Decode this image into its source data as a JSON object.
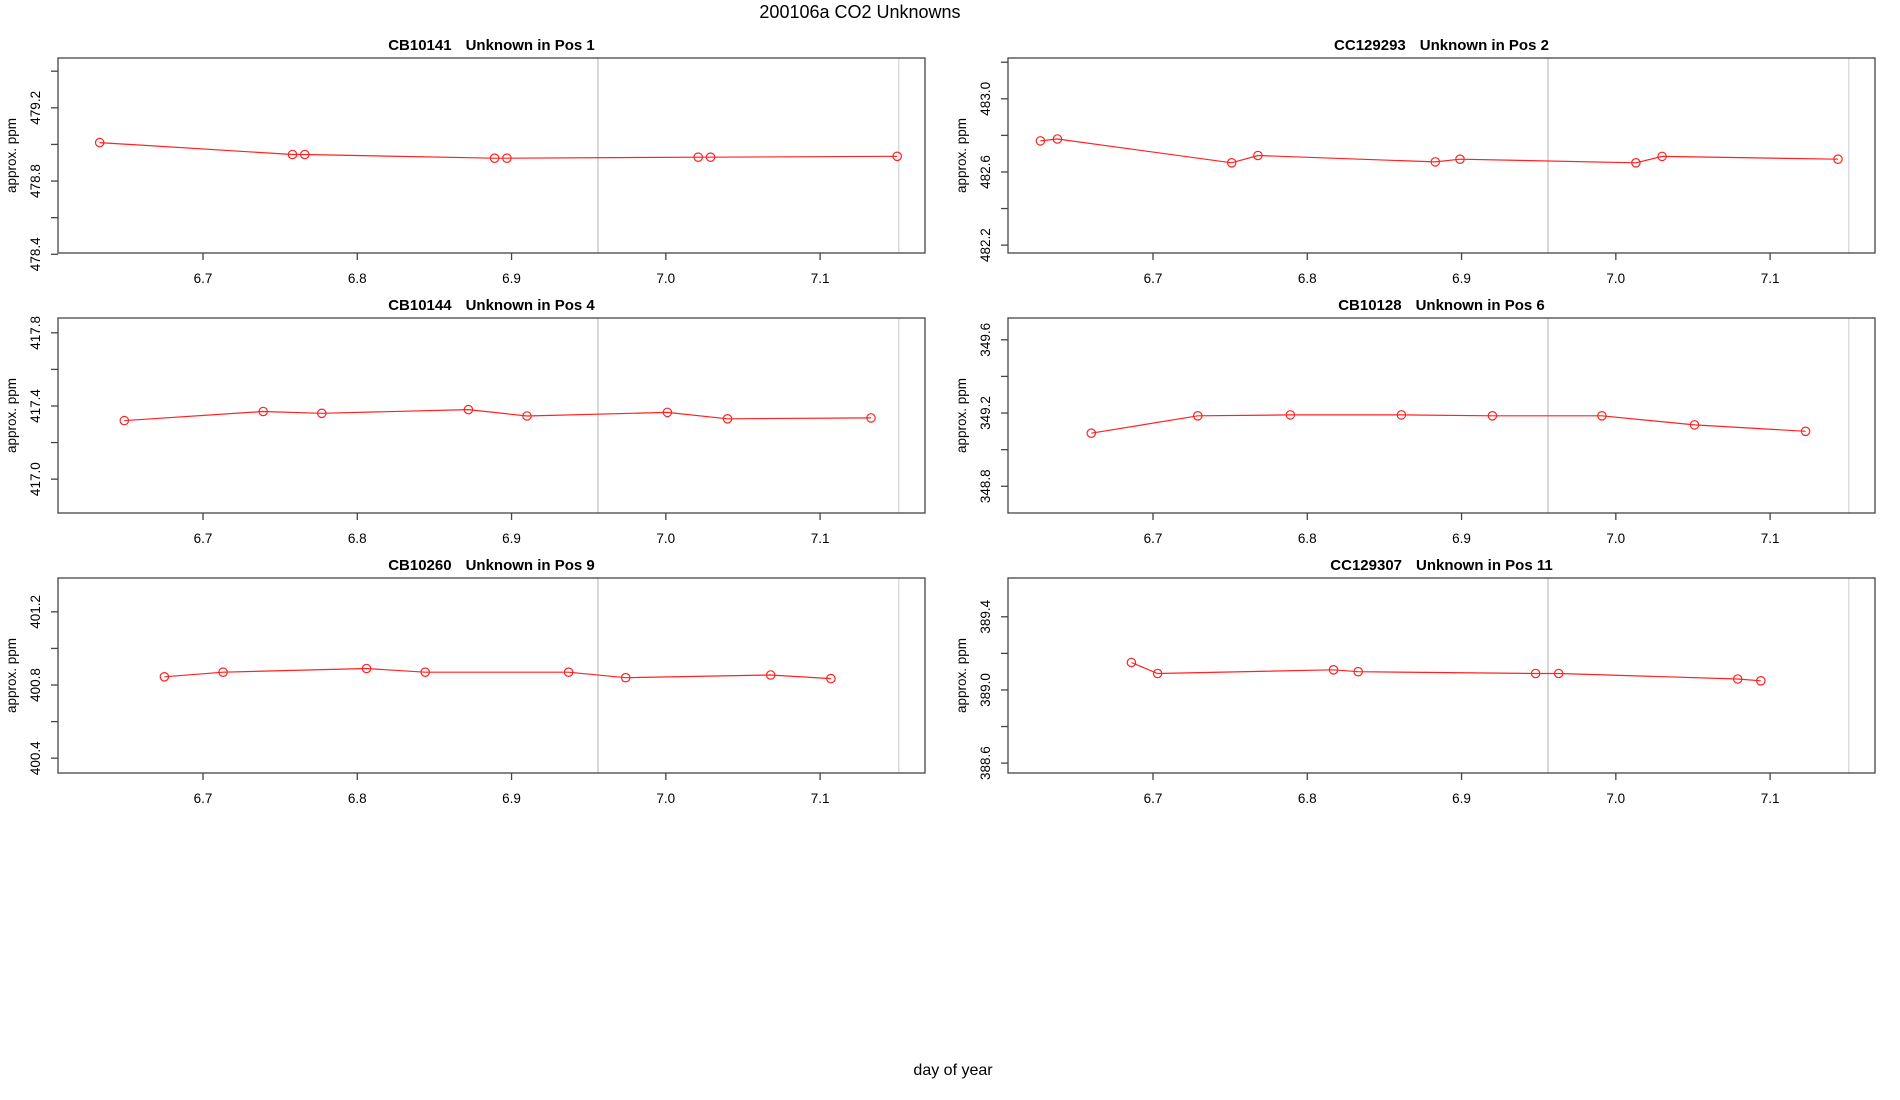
{
  "page_title": "200106a  CO2 Unknowns",
  "xlabel": "day of year",
  "colors": {
    "series": "#ff2222",
    "vline_mid": "#c7c7c7",
    "vline_right": "#d9d9d9",
    "box": "#454545",
    "text": "#000000"
  },
  "chart_data": [
    {
      "type": "line",
      "id": "CB10141",
      "pos": "Unknown in Pos 1",
      "title": "CB10141   Unknown in Pos 1",
      "ylabel": "approx. ppm",
      "x": [
        6.633,
        6.758,
        6.766,
        6.889,
        6.897,
        7.021,
        7.029,
        7.15
      ],
      "y": [
        479.01,
        478.945,
        478.945,
        478.925,
        478.925,
        478.93,
        478.93,
        478.935
      ],
      "xlim": [
        6.606,
        7.168
      ],
      "ylim": [
        478.407,
        479.472
      ],
      "xticks": [
        6.7,
        6.8,
        6.9,
        7.0,
        7.1
      ],
      "xtick_labels": [
        "6.7",
        "6.8",
        "6.9",
        "7.0",
        "7.1"
      ],
      "yticks": [
        478.4,
        478.6,
        478.8,
        479.0,
        479.2,
        479.4
      ],
      "ytick_labels": [
        "478.4",
        "",
        "478.8",
        "",
        "479.2",
        ""
      ],
      "vlines": [
        6.956,
        7.151
      ],
      "legend": "none",
      "grid": "off"
    },
    {
      "type": "line",
      "id": "CC129293",
      "pos": "Unknown in Pos 2",
      "title": "CC129293   Unknown in Pos 2",
      "ylabel": "approx. ppm",
      "x": [
        6.627,
        6.638,
        6.751,
        6.768,
        6.883,
        6.899,
        7.013,
        7.03,
        7.144
      ],
      "y": [
        482.77,
        482.78,
        482.65,
        482.69,
        482.655,
        482.67,
        482.65,
        482.685,
        482.67
      ],
      "xlim": [
        6.606,
        7.168
      ],
      "ylim": [
        482.157,
        483.223
      ],
      "xticks": [
        6.7,
        6.8,
        6.9,
        7.0,
        7.1
      ],
      "xtick_labels": [
        "6.7",
        "6.8",
        "6.9",
        "7.0",
        "7.1"
      ],
      "yticks": [
        482.2,
        482.4,
        482.6,
        482.8,
        483.0,
        483.2
      ],
      "ytick_labels": [
        "482.2",
        "",
        "482.6",
        "",
        "483.0",
        ""
      ],
      "vlines": [
        6.956,
        7.151
      ],
      "legend": "none",
      "grid": "off"
    },
    {
      "type": "line",
      "id": "CB10144",
      "pos": "Unknown in Pos 4",
      "title": "CB10144   Unknown in Pos 4",
      "ylabel": "approx. ppm",
      "x": [
        6.649,
        6.739,
        6.777,
        6.872,
        6.91,
        7.001,
        7.04,
        7.133
      ],
      "y": [
        417.32,
        417.37,
        417.36,
        417.38,
        417.345,
        417.365,
        417.33,
        417.335
      ],
      "xlim": [
        6.606,
        7.168
      ],
      "ylim": [
        416.815,
        417.881
      ],
      "xticks": [
        6.7,
        6.8,
        6.9,
        7.0,
        7.1
      ],
      "xtick_labels": [
        "6.7",
        "6.8",
        "6.9",
        "7.0",
        "7.1"
      ],
      "yticks": [
        417.0,
        417.2,
        417.4,
        417.6,
        417.8
      ],
      "ytick_labels": [
        "417.0",
        "",
        "417.4",
        "",
        "417.8"
      ],
      "vlines": [
        6.956,
        7.151
      ],
      "legend": "none",
      "grid": "off"
    },
    {
      "type": "line",
      "id": "CB10128",
      "pos": "Unknown in Pos 6",
      "title": "CB10128   Unknown in Pos 6",
      "ylabel": "approx. ppm",
      "x": [
        6.66,
        6.729,
        6.789,
        6.861,
        6.92,
        6.991,
        7.051,
        7.123
      ],
      "y": [
        349.09,
        349.185,
        349.19,
        349.19,
        349.185,
        349.185,
        349.135,
        349.1
      ],
      "xlim": [
        6.606,
        7.168
      ],
      "ylim": [
        348.654,
        349.719
      ],
      "xticks": [
        6.7,
        6.8,
        6.9,
        7.0,
        7.1
      ],
      "xtick_labels": [
        "6.7",
        "6.8",
        "6.9",
        "7.0",
        "7.1"
      ],
      "yticks": [
        348.8,
        349.0,
        349.2,
        349.4,
        349.6
      ],
      "ytick_labels": [
        "348.8",
        "",
        "349.2",
        "",
        "349.6"
      ],
      "vlines": [
        6.956,
        7.151
      ],
      "legend": "none",
      "grid": "off"
    },
    {
      "type": "line",
      "id": "CB10260",
      "pos": "Unknown in Pos 9",
      "title": "CB10260   Unknown in Pos 9",
      "ylabel": "approx. ppm",
      "x": [
        6.675,
        6.713,
        6.806,
        6.844,
        6.937,
        6.974,
        7.068,
        7.107
      ],
      "y": [
        400.845,
        400.87,
        400.89,
        400.87,
        400.87,
        400.84,
        400.855,
        400.835
      ],
      "xlim": [
        6.606,
        7.168
      ],
      "ylim": [
        400.319,
        401.385
      ],
      "xticks": [
        6.7,
        6.8,
        6.9,
        7.0,
        7.1
      ],
      "xtick_labels": [
        "6.7",
        "6.8",
        "6.9",
        "7.0",
        "7.1"
      ],
      "yticks": [
        400.4,
        400.6,
        400.8,
        401.0,
        401.2
      ],
      "ytick_labels": [
        "400.4",
        "",
        "400.8",
        "",
        "401.2"
      ],
      "vlines": [
        6.956,
        7.151
      ],
      "legend": "none",
      "grid": "off"
    },
    {
      "type": "line",
      "id": "CC129307",
      "pos": "Unknown in Pos 11",
      "title": "CC129307   Unknown in Pos 11",
      "ylabel": "approx. ppm",
      "x": [
        6.686,
        6.703,
        6.817,
        6.833,
        6.948,
        6.963,
        7.079,
        7.094
      ],
      "y": [
        389.15,
        389.09,
        389.11,
        389.1,
        389.09,
        389.09,
        389.06,
        389.05
      ],
      "xlim": [
        6.606,
        7.168
      ],
      "ylim": [
        388.546,
        389.612
      ],
      "xticks": [
        6.7,
        6.8,
        6.9,
        7.0,
        7.1
      ],
      "xtick_labels": [
        "6.7",
        "6.8",
        "6.9",
        "7.0",
        "7.1"
      ],
      "yticks": [
        388.6,
        388.8,
        389.0,
        389.2,
        389.4
      ],
      "ytick_labels": [
        "388.6",
        "",
        "389.0",
        "",
        "389.4"
      ],
      "vlines": [
        6.956,
        7.151
      ],
      "legend": "none",
      "grid": "off"
    }
  ]
}
